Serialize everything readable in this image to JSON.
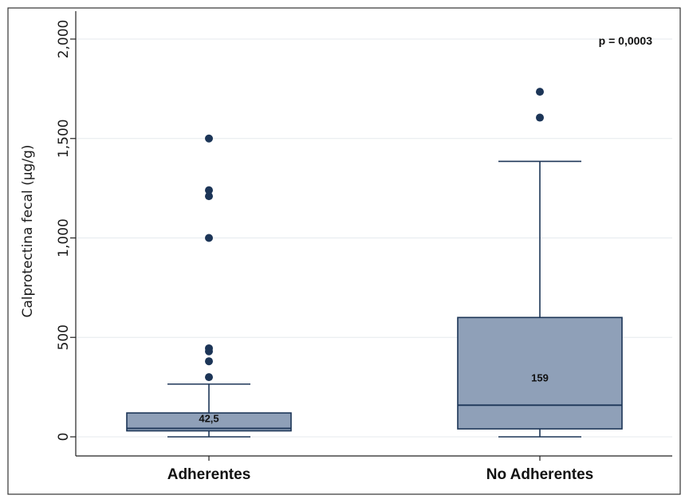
{
  "chart_data": {
    "type": "box",
    "title": "",
    "xlabel": "",
    "ylabel": "Calprotectina fecal (µg/g)",
    "ylim": [
      0,
      2000
    ],
    "yticks": [
      0,
      500,
      1000,
      1500,
      2000
    ],
    "ytick_labels": [
      "0",
      "500",
      "1,000",
      "1,500",
      "2,000"
    ],
    "grid": true,
    "categories": [
      "Adherentes",
      "No Adherentes"
    ],
    "boxes": [
      {
        "category": "Adherentes",
        "min": 0,
        "q1": 30,
        "median": 42.5,
        "median_label": "42,5",
        "q3": 120,
        "max": 265,
        "outliers": [
          300,
          380,
          430,
          445,
          1000,
          1210,
          1240,
          1500
        ]
      },
      {
        "category": "No Adherentes",
        "min": 0,
        "q1": 40,
        "median": 159,
        "median_label": "159",
        "q3": 600,
        "max": 1385,
        "outliers": [
          1605,
          1735
        ]
      }
    ],
    "annotation": "p = 0,0003",
    "colors": {
      "box_fill": "#8fa0b8",
      "box_stroke": "#1c3557",
      "point": "#1c3557",
      "grid": "#e6eaee",
      "frame": "#333333"
    }
  }
}
